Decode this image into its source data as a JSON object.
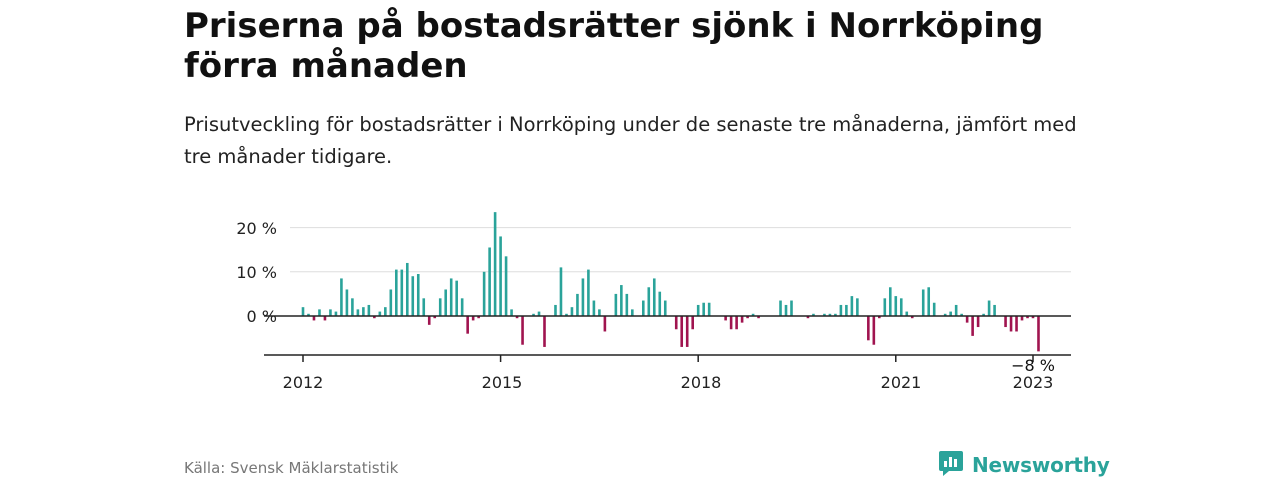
{
  "title": "Priserna på bostadsrätter sjönk i Norrköping förra månaden",
  "subtitle": "Prisutveckling för bostadsrätter i Norrköping under de senaste tre månaderna, jämfört med tre månader tidigare.",
  "source": "Källa: Svensk Mäklarstatistik",
  "brand": {
    "name": "Newsworthy",
    "icon": "newsworthy-logo-icon"
  },
  "colors": {
    "positive": "#2aa39a",
    "negative": "#a0144f",
    "grid": "#dddddd",
    "axis": "#222222"
  },
  "chart_data": {
    "type": "bar",
    "x_start": "2012-01",
    "x_end": "2023-02",
    "xticks": [
      "2012",
      "2015",
      "2018",
      "2021",
      "2023"
    ],
    "yticks": [
      "20 %",
      "10 %",
      "0 %"
    ],
    "ylim": [
      -9,
      24
    ],
    "annotation": "−8 %",
    "series": [
      {
        "values": [
          2,
          0.5,
          -1,
          1.5,
          -1,
          1.5,
          1,
          8.5,
          6,
          4,
          1.5,
          2,
          2.5,
          -0.5,
          1,
          2,
          6,
          10.5,
          10.5,
          12,
          9,
          9.5,
          4,
          -2,
          -0.5,
          4,
          6,
          8.5,
          8,
          4,
          -4,
          -1,
          -0.5,
          10,
          15.5,
          23.5,
          18,
          13.5,
          1.5,
          -0.5,
          -6.5,
          0,
          0.5,
          1,
          -7,
          0,
          2.5,
          11,
          0.5,
          2,
          5,
          8.5,
          10.5,
          3.5,
          1.5,
          -3.5,
          0,
          5,
          7,
          5,
          1.5,
          0,
          3.5,
          6.5,
          8.5,
          5.5,
          3.5,
          0,
          -3,
          -7,
          -7,
          -3,
          2.5,
          3,
          3,
          0,
          0,
          -1,
          -3,
          -3,
          -1.5,
          -0.5,
          0.5,
          -0.5,
          0,
          0,
          0,
          3.5,
          2.5,
          3.5,
          0,
          0,
          -0.5,
          0.5,
          0,
          0.5,
          0.5,
          0.5,
          2.5,
          2.5,
          4.5,
          4,
          0,
          -5.5,
          -6.5,
          -0.5,
          4,
          6.5,
          4.5,
          4,
          1,
          -0.5,
          0,
          6,
          6.5,
          3,
          0,
          0.5,
          1,
          2.5,
          0.5,
          -1.5,
          -4.5,
          -2.5,
          0.5,
          3.5,
          2.5,
          0,
          -2.5,
          -3.5,
          -3.5,
          -1,
          -0.5,
          -0.5,
          -8
        ]
      }
    ]
  }
}
